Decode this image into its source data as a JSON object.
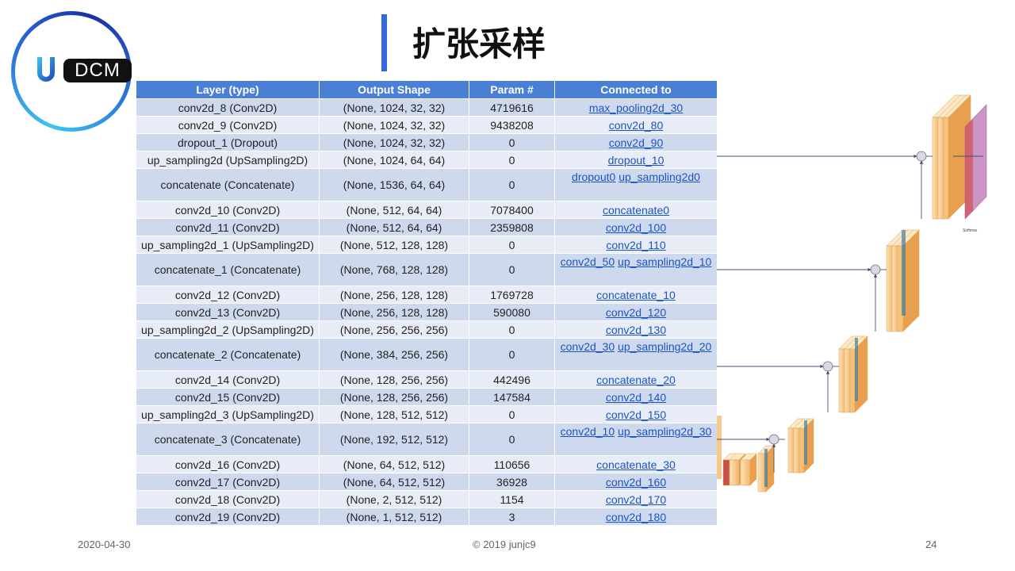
{
  "logo": {
    "text": "DCM"
  },
  "title": "扩张采样",
  "table": {
    "headers": [
      "Layer (type)",
      "Output Shape",
      "Param #",
      "Connected to"
    ],
    "rows": [
      {
        "layer": "conv2d_8 (Conv2D)",
        "shape": "(None, 1024, 32, 32)",
        "params": "4719616",
        "conn": [
          "max_pooling2d_30"
        ]
      },
      {
        "layer": "conv2d_9 (Conv2D)",
        "shape": "(None, 1024, 32, 32)",
        "params": "9438208",
        "conn": [
          "conv2d_80"
        ]
      },
      {
        "layer": "dropout_1 (Dropout)",
        "shape": "(None, 1024, 32, 32)",
        "params": "0",
        "conn": [
          "conv2d_90"
        ]
      },
      {
        "layer": "up_sampling2d (UpSampling2D)",
        "shape": "(None, 1024, 64, 64)",
        "params": "0",
        "conn": [
          "dropout_10"
        ]
      },
      {
        "layer": "concatenate (Concatenate)",
        "shape": "(None, 1536, 64, 64)",
        "params": "0",
        "conn": [
          "dropout0",
          "up_sampling2d0"
        ]
      },
      {
        "layer": "conv2d_10 (Conv2D)",
        "shape": "(None, 512, 64, 64)",
        "params": "7078400",
        "conn": [
          "concatenate0"
        ]
      },
      {
        "layer": "conv2d_11 (Conv2D)",
        "shape": "(None, 512, 64, 64)",
        "params": "2359808",
        "conn": [
          "conv2d_100"
        ]
      },
      {
        "layer": "up_sampling2d_1 (UpSampling2D)",
        "shape": "(None, 512, 128, 128)",
        "params": "0",
        "conn": [
          "conv2d_110"
        ]
      },
      {
        "layer": "concatenate_1 (Concatenate)",
        "shape": "(None, 768, 128, 128)",
        "params": "0",
        "conn": [
          "conv2d_50",
          "up_sampling2d_10"
        ]
      },
      {
        "layer": "conv2d_12 (Conv2D)",
        "shape": "(None, 256, 128, 128)",
        "params": "1769728",
        "conn": [
          "concatenate_10"
        ]
      },
      {
        "layer": "conv2d_13 (Conv2D)",
        "shape": "(None, 256, 128, 128)",
        "params": "590080",
        "conn": [
          "conv2d_120"
        ]
      },
      {
        "layer": "up_sampling2d_2 (UpSampling2D)",
        "shape": "(None, 256, 256, 256)",
        "params": "0",
        "conn": [
          "conv2d_130"
        ]
      },
      {
        "layer": "concatenate_2 (Concatenate)",
        "shape": "(None, 384, 256, 256)",
        "params": "0",
        "conn": [
          "conv2d_30",
          "up_sampling2d_20"
        ]
      },
      {
        "layer": "conv2d_14 (Conv2D)",
        "shape": "(None, 128, 256, 256)",
        "params": "442496",
        "conn": [
          "concatenate_20"
        ]
      },
      {
        "layer": "conv2d_15 (Conv2D)",
        "shape": "(None, 128, 256, 256)",
        "params": "147584",
        "conn": [
          "conv2d_140"
        ]
      },
      {
        "layer": "up_sampling2d_3 (UpSampling2D)",
        "shape": "(None, 128, 512, 512)",
        "params": "0",
        "conn": [
          "conv2d_150"
        ]
      },
      {
        "layer": "concatenate_3 (Concatenate)",
        "shape": "(None, 192, 512, 512)",
        "params": "0",
        "conn": [
          "conv2d_10",
          "up_sampling2d_30"
        ]
      },
      {
        "layer": "conv2d_16 (Conv2D)",
        "shape": "(None, 64, 512, 512)",
        "params": "110656",
        "conn": [
          "concatenate_30"
        ]
      },
      {
        "layer": "conv2d_17 (Conv2D)",
        "shape": "(None, 64, 512, 512)",
        "params": "36928",
        "conn": [
          "conv2d_160"
        ]
      },
      {
        "layer": "conv2d_18 (Conv2D)",
        "shape": "(None, 2, 512, 512)",
        "params": "1154",
        "conn": [
          "conv2d_170"
        ]
      },
      {
        "layer": "conv2d_19 (Conv2D)",
        "shape": "(None, 1, 512, 512)",
        "params": "3",
        "conn": [
          "conv2d_180"
        ]
      }
    ]
  },
  "footer": {
    "date": "2020-04-30",
    "copyright": "© 2019 junjc9",
    "page": "24"
  },
  "diagram": {
    "output_label": "Softmax"
  },
  "colors": {
    "accent": "#3366e0",
    "header_bg": "#4a7fd6",
    "row_odd": "#cfd9ee",
    "row_even": "#e7ecf7",
    "link": "#1a56c0"
  }
}
